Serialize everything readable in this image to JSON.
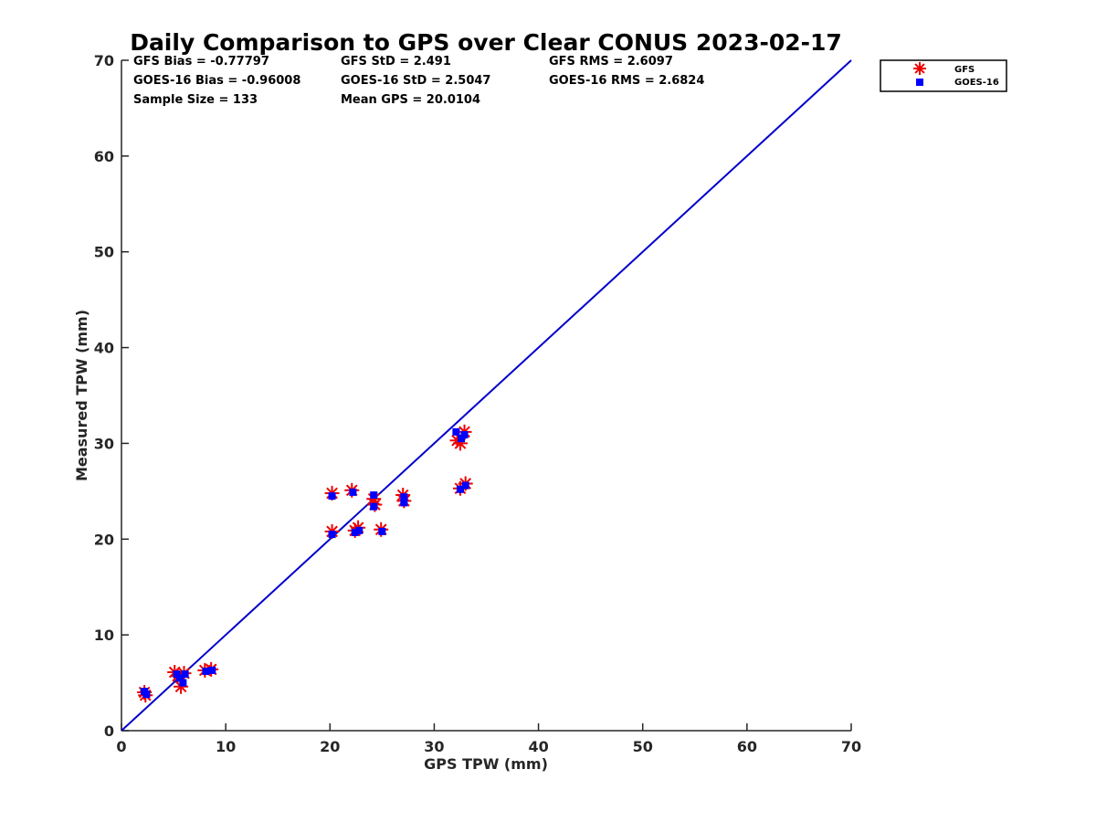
{
  "chart_data": {
    "type": "scatter",
    "title": "Daily Comparison to GPS over Clear CONUS 2023-02-17",
    "xlabel": "GPS TPW (mm)",
    "ylabel": "Measured TPW (mm)",
    "xlim": [
      0,
      70
    ],
    "ylim": [
      0,
      70
    ],
    "xticks": [
      "0",
      "10",
      "20",
      "30",
      "40",
      "50",
      "60",
      "70"
    ],
    "yticks": [
      "0",
      "10",
      "20",
      "30",
      "40",
      "50",
      "60",
      "70"
    ],
    "legend_position": "outside-top-right",
    "reference_line": {
      "x": [
        0,
        70
      ],
      "y": [
        0,
        70
      ],
      "color": "#0000cc"
    },
    "stats": [
      "GFS Bias = -0.77797",
      "GFS StD = 2.491",
      "GFS RMS = 2.6097",
      "GOES-16 Bias = -0.96008",
      "GOES-16 StD = 2.5047",
      "GOES-16 RMS = 2.6824",
      "Sample Size = 133",
      "Mean GPS = 20.0104"
    ],
    "series": [
      {
        "name": "GFS",
        "marker": "asterisk",
        "color": "#ee0000",
        "points": [
          [
            2.2,
            4.0
          ],
          [
            2.3,
            3.7
          ],
          [
            5.1,
            6.1
          ],
          [
            5.4,
            5.7
          ],
          [
            5.7,
            4.6
          ],
          [
            6.0,
            6.0
          ],
          [
            8.0,
            6.3
          ],
          [
            8.6,
            6.4
          ],
          [
            20.2,
            24.8
          ],
          [
            20.2,
            20.8
          ],
          [
            22.1,
            25.1
          ],
          [
            22.4,
            20.9
          ],
          [
            22.7,
            21.2
          ],
          [
            24.2,
            24.2
          ],
          [
            24.3,
            23.6
          ],
          [
            24.9,
            21.0
          ],
          [
            27.0,
            24.6
          ],
          [
            27.1,
            24.0
          ],
          [
            32.2,
            30.3
          ],
          [
            32.5,
            30.0
          ],
          [
            32.9,
            31.2
          ],
          [
            32.5,
            25.3
          ],
          [
            33.0,
            25.8
          ]
        ]
      },
      {
        "name": "GOES-16",
        "marker": "square",
        "color": "#0000ff",
        "points": [
          [
            2.2,
            4.1
          ],
          [
            2.4,
            3.8
          ],
          [
            5.3,
            5.9
          ],
          [
            5.6,
            5.5
          ],
          [
            5.9,
            5.0
          ],
          [
            6.1,
            5.9
          ],
          [
            8.1,
            6.2
          ],
          [
            8.7,
            6.3
          ],
          [
            20.2,
            24.5
          ],
          [
            20.2,
            20.5
          ],
          [
            22.2,
            24.9
          ],
          [
            22.4,
            20.7
          ],
          [
            22.8,
            20.9
          ],
          [
            24.2,
            24.6
          ],
          [
            24.2,
            23.4
          ],
          [
            25.0,
            20.8
          ],
          [
            27.1,
            24.4
          ],
          [
            27.1,
            23.8
          ],
          [
            32.1,
            31.2
          ],
          [
            32.6,
            30.5
          ],
          [
            32.9,
            30.9
          ],
          [
            32.5,
            25.2
          ],
          [
            33.0,
            25.6
          ]
        ]
      }
    ]
  }
}
